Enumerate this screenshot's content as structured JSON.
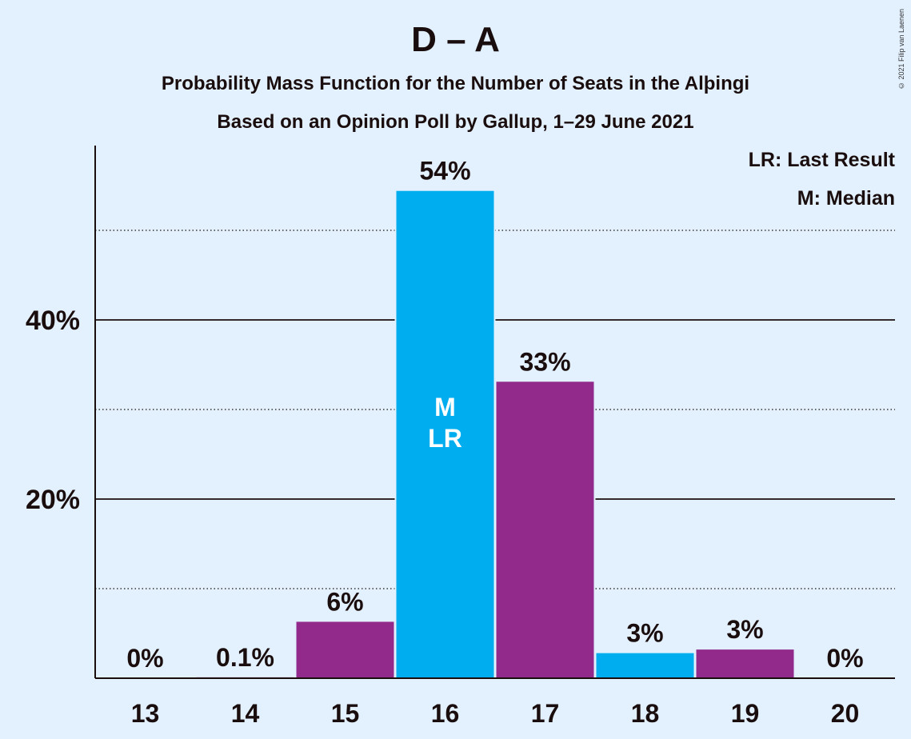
{
  "title": "D – A",
  "subtitle_1": "Probability Mass Function for the Number of Seats in the Alþingi",
  "subtitle_2": "Based on an Opinion Poll by Gallup, 1–29 June 2021",
  "copyright": "© 2021 Filip van Laenen",
  "legend": {
    "last_result": "LR: Last Result",
    "median": "M: Median"
  },
  "colors": {
    "background": "#e3f1ff",
    "blue": "#00aeef",
    "purple": "#922a8c",
    "text": "#1a0d0d"
  },
  "chart_data": {
    "type": "bar",
    "categories": [
      "13",
      "14",
      "15",
      "16",
      "17",
      "18",
      "19",
      "20"
    ],
    "values": [
      0,
      0.1,
      6.3,
      54.4,
      33.1,
      2.8,
      3.2,
      0
    ],
    "value_labels": [
      "0%",
      "0.1%",
      "6%",
      "54%",
      "33%",
      "3%",
      "3%",
      "0%"
    ],
    "bar_colors": [
      "#00aeef",
      "#922a8c",
      "#922a8c",
      "#00aeef",
      "#922a8c",
      "#00aeef",
      "#922a8c",
      "#00aeef"
    ],
    "ylim": [
      0,
      59
    ],
    "yticks": [
      20,
      40
    ],
    "ytick_labels": [
      "20%",
      "40%"
    ],
    "minor_gridlines": [
      10,
      30,
      50
    ],
    "median_category": "16",
    "last_result_category": "16",
    "median_marker": "M",
    "last_result_marker": "LR",
    "xlabel": "",
    "ylabel": ""
  }
}
